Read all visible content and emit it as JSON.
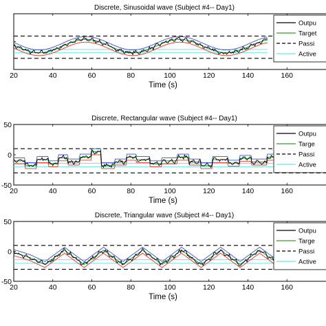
{
  "colors": {
    "output": "#000000",
    "target": "#2ca02c",
    "passive": "#000000",
    "active": "#6fe0e0",
    "blue": "#3b4fd8",
    "red": "#e53030",
    "dashed_guide": "#000000"
  },
  "chart_data": [
    {
      "type": "line",
      "title": "Discrete, Sinusoidal wave (Subject #4-- Day1)",
      "xlabel": "Time (s)",
      "ylabel": "",
      "xlim": [
        20,
        180
      ],
      "ylim": [
        -50,
        50
      ],
      "xticks": [
        "20",
        "40",
        "60",
        "80",
        "100",
        "120",
        "140",
        "160"
      ],
      "yticks": [
        "50",
        "0",
        "-50"
      ],
      "yticks_visible": [
        "",
        "",
        ""
      ],
      "grid": false,
      "legend_position": "top-right",
      "legend": [
        "Output",
        "Target",
        "Passive",
        "Active"
      ],
      "legend_visible": [
        "Outpu",
        "Target",
        "Passi",
        "Active"
      ],
      "signal_shape": "sine",
      "period_s": 48,
      "amplitude": 12,
      "offset": -8,
      "passive_bounds": [
        10,
        -30
      ],
      "active_bounds": [
        -14,
        -20
      ],
      "x_end": 150
    },
    {
      "type": "line",
      "title": "Discrete, Rectangular wave (Subject #4-- Day1)",
      "xlabel": "Time (s)",
      "ylabel": "",
      "xlim": [
        20,
        180
      ],
      "ylim": [
        -50,
        50
      ],
      "xticks": [
        "20",
        "40",
        "60",
        "80",
        "100",
        "120",
        "140",
        "160"
      ],
      "yticks": [
        "50",
        "0",
        "-50"
      ],
      "yticks_visible": [
        "50",
        "0",
        "-50"
      ],
      "grid": false,
      "legend_position": "top-right",
      "legend": [
        "Output",
        "Target",
        "Passive",
        "Active"
      ],
      "legend_visible": [
        "Outpu",
        "Targe",
        "Passi",
        "Active"
      ],
      "signal_shape": "rectangular",
      "steps": [
        [
          20,
          -10
        ],
        [
          26,
          -18
        ],
        [
          32,
          -8
        ],
        [
          38,
          -15
        ],
        [
          43,
          -5
        ],
        [
          48,
          -12
        ],
        [
          54,
          -4
        ],
        [
          60,
          5
        ],
        [
          65,
          -18
        ],
        [
          72,
          -12
        ],
        [
          78,
          -4
        ],
        [
          83,
          -8
        ],
        [
          90,
          -15
        ],
        [
          96,
          -10
        ],
        [
          104,
          -4
        ],
        [
          110,
          -12
        ],
        [
          116,
          -18
        ],
        [
          122,
          -8
        ],
        [
          130,
          -14
        ],
        [
          136,
          -6
        ],
        [
          142,
          -12
        ],
        [
          150,
          -4
        ],
        [
          158,
          -12
        ],
        [
          166,
          -4
        ],
        [
          174,
          -10
        ],
        [
          180,
          -10
        ]
      ],
      "passive_bounds": [
        10,
        -30
      ],
      "active_bounds": [
        -14,
        -20
      ],
      "x_end": 180
    },
    {
      "type": "line",
      "title": "Discrete, Triangular wave (Subject #4-- Day1)",
      "xlabel": "Time (s)",
      "ylabel": "",
      "xlim": [
        20,
        180
      ],
      "ylim": [
        -50,
        50
      ],
      "xticks": [
        "20",
        "40",
        "60",
        "80",
        "100",
        "120",
        "140",
        "160"
      ],
      "yticks": [
        "50",
        "0",
        "-50"
      ],
      "yticks_visible": [
        "50",
        "0",
        "-50"
      ],
      "grid": false,
      "legend_position": "top-right",
      "legend": [
        "Output",
        "Target",
        "Passive",
        "Active"
      ],
      "legend_visible": [
        "Outpu",
        "Targe",
        "Passi",
        "Active"
      ],
      "signal_shape": "triangular",
      "vertices": [
        [
          20,
          -2
        ],
        [
          28,
          -10
        ],
        [
          36,
          -22
        ],
        [
          46,
          2
        ],
        [
          56,
          -22
        ],
        [
          66,
          2
        ],
        [
          76,
          -22
        ],
        [
          86,
          2
        ],
        [
          96,
          -22
        ],
        [
          106,
          2
        ],
        [
          116,
          -22
        ],
        [
          126,
          2
        ],
        [
          136,
          -22
        ],
        [
          146,
          2
        ],
        [
          156,
          -22
        ],
        [
          166,
          2
        ],
        [
          176,
          -22
        ],
        [
          180,
          -18
        ]
      ],
      "passive_bounds": [
        10,
        -30
      ],
      "active_bounds": [
        -14,
        -20
      ],
      "x_end": 180
    }
  ]
}
